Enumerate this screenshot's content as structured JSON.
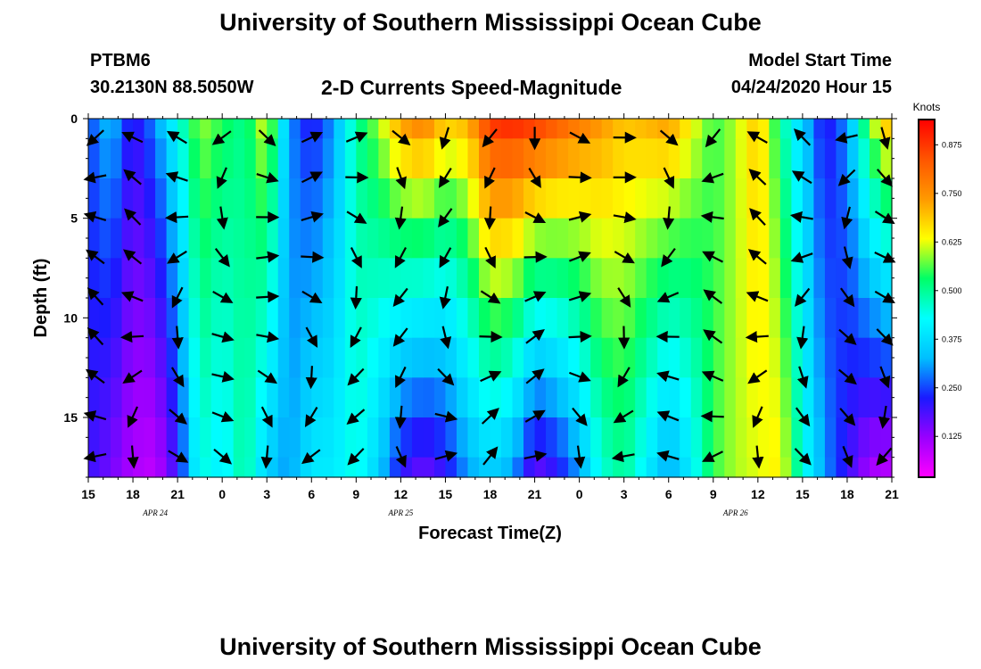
{
  "header": {
    "title": "University of Southern Mississippi Ocean Cube",
    "station_id": "PTBM6",
    "station_coords": "30.2130N 88.5050W",
    "subtitle": "2-D Currents Speed-Magnitude",
    "model_start_label": "Model Start Time",
    "model_start_value": "04/24/2020 Hour 15"
  },
  "footer": {
    "title": "University of Southern Mississippi Ocean Cube"
  },
  "chart_data": {
    "type": "heatmap",
    "title": "2-D Currents Speed-Magnitude",
    "xlabel": "Forecast Time(Z)",
    "ylabel": "Depth (ft)",
    "x_tick_labels": [
      "15",
      "18",
      "21",
      "0",
      "3",
      "6",
      "9",
      "12",
      "15",
      "18",
      "21",
      "0",
      "3",
      "6",
      "9",
      "12",
      "15",
      "18",
      "21"
    ],
    "x_date_labels": [
      {
        "label": "APR 24",
        "tick_index": 1.5
      },
      {
        "label": "APR 25",
        "tick_index": 7
      },
      {
        "label": "APR 26",
        "tick_index": 14.5
      }
    ],
    "x_range_hours": [
      0,
      54
    ],
    "y_ticks": [
      0,
      5,
      10,
      15
    ],
    "ylim": [
      0,
      18
    ],
    "colorbar": {
      "title": "Knots",
      "ticks": [
        0.125,
        0.25,
        0.375,
        0.5,
        0.625,
        0.75,
        0.875
      ],
      "tick_labels": [
        "0.125",
        "0.250",
        "0.375",
        "0.500",
        "0.625",
        "0.750",
        "0.875"
      ],
      "range": [
        0.02,
        0.94
      ],
      "colors": [
        "#ff00ff",
        "#9900ff",
        "#1a1aff",
        "#00bfff",
        "#00ffff",
        "#00ff66",
        "#ffff00",
        "#ff9900",
        "#ff5500",
        "#ff0000"
      ]
    },
    "depth_layers_ft": [
      0,
      1,
      3,
      5,
      7,
      9,
      11,
      13,
      15,
      17,
      18
    ],
    "speed_profile": {
      "hours": [
        0,
        1.5,
        3,
        4.5,
        6,
        7.5,
        9,
        10.5,
        12,
        13.5,
        15,
        16.5,
        18,
        19.5,
        21,
        22.5,
        24,
        25.5,
        27,
        28.5,
        30,
        31.5,
        33,
        34.5,
        36,
        37.5,
        39,
        40.5,
        42,
        43.5,
        45,
        46.5,
        48,
        49.5,
        51,
        52.5,
        54
      ],
      "surface_knots": [
        0.25,
        0.35,
        0.2,
        0.3,
        0.45,
        0.6,
        0.55,
        0.5,
        0.65,
        0.3,
        0.2,
        0.3,
        0.5,
        0.6,
        0.75,
        0.8,
        0.7,
        0.72,
        0.9,
        0.92,
        0.9,
        0.85,
        0.8,
        0.75,
        0.7,
        0.72,
        0.75,
        0.65,
        0.55,
        0.6,
        0.7,
        0.5,
        0.35,
        0.2,
        0.3,
        0.6,
        0.75
      ],
      "bottom_knots": [
        0.2,
        0.15,
        0.1,
        0.08,
        0.2,
        0.45,
        0.4,
        0.5,
        0.35,
        0.3,
        0.4,
        0.4,
        0.45,
        0.35,
        0.2,
        0.15,
        0.2,
        0.3,
        0.35,
        0.3,
        0.15,
        0.2,
        0.3,
        0.45,
        0.5,
        0.4,
        0.3,
        0.4,
        0.55,
        0.6,
        0.62,
        0.65,
        0.45,
        0.3,
        0.2,
        0.1,
        0.08
      ]
    },
    "arrow_grid": {
      "hours": [
        0.5,
        3,
        6,
        9,
        12,
        15,
        18,
        21,
        24,
        27,
        30,
        33,
        36,
        39,
        42,
        45,
        48,
        51,
        53.5
      ],
      "depths_ft": [
        0.5,
        2.5,
        4.5,
        6.5,
        8.5,
        10.5,
        12.5,
        14.5,
        16.5
      ]
    }
  }
}
